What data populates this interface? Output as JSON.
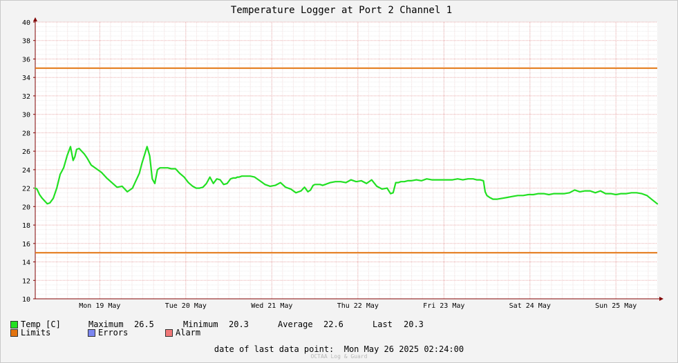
{
  "chart_data": {
    "type": "line",
    "title": "Temperature Logger at Port 2 Channel 1",
    "ylim": [
      10,
      40
    ],
    "y_ticks": [
      "10",
      "12",
      "14",
      "16",
      "18",
      "20",
      "22",
      "24",
      "26",
      "28",
      "30",
      "32",
      "34",
      "36",
      "38",
      "40"
    ],
    "x_range_days": [
      18.75,
      25.98
    ],
    "day_labels": [
      {
        "label": "Mon 19 May",
        "day": 19
      },
      {
        "label": "Tue 20 May",
        "day": 20
      },
      {
        "label": "Wed 21 May",
        "day": 21
      },
      {
        "label": "Thu 22 May",
        "day": 22
      },
      {
        "label": "Fri 23 May",
        "day": 23
      },
      {
        "label": "Sat 24 May",
        "day": 24
      },
      {
        "label": "Sun 25 May",
        "day": 25
      }
    ],
    "grid": true,
    "colors": {
      "temp": "#22e022",
      "limits": "#e2730f",
      "errors": "#7b86f0",
      "alarm": "#f07878",
      "grid": "#e8a9a9",
      "axis": "#800000"
    },
    "limits": [
      35,
      15
    ],
    "series": [
      {
        "name": "Temp [C]",
        "x": [
          18.75,
          18.77,
          18.8,
          18.83,
          18.86,
          18.89,
          18.92,
          18.96,
          19.0,
          19.04,
          19.08,
          19.12,
          19.16,
          19.19,
          19.21,
          19.23,
          19.26,
          19.29,
          19.32,
          19.35,
          19.4,
          19.46,
          19.52,
          19.58,
          19.64,
          19.7,
          19.76,
          19.82,
          19.88,
          19.92,
          19.96,
          19.99,
          20.02,
          20.05,
          20.08,
          20.11,
          20.14,
          20.17,
          20.2,
          20.22,
          20.23,
          20.24,
          20.26,
          20.29,
          20.33,
          20.38,
          20.43,
          20.48,
          20.53,
          20.58,
          20.62,
          20.66,
          20.7,
          20.74,
          20.78,
          20.82,
          20.86,
          20.9,
          20.94,
          20.98,
          21.02,
          21.05,
          21.08,
          21.1,
          21.12,
          21.15,
          21.18,
          21.22,
          21.25,
          21.3,
          21.36,
          21.42,
          21.48,
          21.54,
          21.6,
          21.66,
          21.72,
          21.78,
          21.84,
          21.88,
          21.92,
          21.95,
          21.98,
          22.0,
          22.03,
          22.06,
          22.09,
          22.12,
          22.15,
          22.18,
          22.24,
          22.3,
          22.36,
          22.42,
          22.48,
          22.54,
          22.6,
          22.66,
          22.72,
          22.78,
          22.84,
          22.88,
          22.91,
          22.94,
          22.97,
          23.0,
          23.04,
          23.08,
          23.12,
          23.18,
          23.24,
          23.3,
          23.36,
          23.42,
          23.48,
          23.54,
          23.6,
          23.66,
          23.72,
          23.78,
          23.84,
          23.88,
          23.92,
          23.96,
          23.98,
          24.0,
          24.03,
          24.07,
          24.12,
          24.18,
          24.24,
          24.3,
          24.36,
          24.42,
          24.48,
          24.54,
          24.6,
          24.66,
          24.72,
          24.78,
          24.84,
          24.9,
          24.96,
          25.02,
          25.08,
          25.14,
          25.2,
          25.26,
          25.32,
          25.38,
          25.44,
          25.5,
          25.56,
          25.62,
          25.68,
          25.74,
          25.8,
          25.86,
          25.9,
          25.94,
          25.98
        ],
        "y": [
          22.0,
          21.9,
          21.3,
          20.9,
          20.6,
          20.3,
          20.4,
          20.9,
          22.0,
          23.5,
          24.2,
          25.5,
          26.5,
          25.0,
          25.4,
          26.2,
          26.3,
          26.0,
          25.7,
          25.3,
          24.5,
          24.1,
          23.7,
          23.1,
          22.6,
          22.1,
          22.2,
          21.6,
          22.0,
          22.8,
          23.6,
          24.7,
          25.6,
          26.5,
          25.5,
          23.0,
          22.5,
          24.0,
          24.2,
          24.2,
          24.2,
          24.2,
          24.2,
          24.2,
          24.1,
          24.1,
          23.6,
          23.2,
          22.6,
          22.2,
          22.0,
          22.0,
          22.1,
          22.5,
          23.2,
          22.5,
          23.0,
          22.9,
          22.4,
          22.5,
          23.0,
          23.1,
          23.1,
          23.2,
          23.2,
          23.3,
          23.3,
          23.3,
          23.3,
          23.2,
          22.8,
          22.4,
          22.2,
          22.3,
          22.6,
          22.1,
          21.9,
          21.5,
          21.7,
          22.1,
          21.6,
          21.8,
          22.3,
          22.4,
          22.4,
          22.4,
          22.3,
          22.4,
          22.5,
          22.6,
          22.7,
          22.7,
          22.6,
          22.9,
          22.7,
          22.8,
          22.5,
          22.9,
          22.2,
          21.9,
          22.0,
          21.4,
          21.5,
          22.6,
          22.6,
          22.7,
          22.7,
          22.8,
          22.8,
          22.9,
          22.8,
          23.0,
          22.9,
          22.9,
          22.9,
          22.9,
          22.9,
          23.0,
          22.9,
          23.0,
          23.0,
          22.9,
          22.9,
          22.8,
          21.6,
          21.2,
          21.0,
          20.8,
          20.8,
          20.9,
          21.0,
          21.1,
          21.2,
          21.2,
          21.3,
          21.3,
          21.4,
          21.4,
          21.3,
          21.4,
          21.4,
          21.4,
          21.5,
          21.8,
          21.6,
          21.7,
          21.7,
          21.5,
          21.7,
          21.4,
          21.4,
          21.3,
          21.4,
          21.4,
          21.5,
          21.5,
          21.4,
          21.2,
          20.9,
          20.6,
          20.3
        ]
      },
      {
        "name": "Limits",
        "values": [
          35,
          15
        ]
      }
    ]
  },
  "legend": {
    "temp_label": "Temp [C]",
    "limits_label": "Limits",
    "errors_label": "Errors",
    "alarm_label": "Alarm"
  },
  "stats": {
    "max_label": "Maximum",
    "max_value": "26.5",
    "min_label": "Minimum",
    "min_value": "20.3",
    "avg_label": "Average",
    "avg_value": "22.6",
    "last_label": "Last",
    "last_value": "20.3"
  },
  "footer": {
    "last_point_label": "date of last data point:",
    "last_point_value": "Mon May 26 2025 02:24:00",
    "brand": "OCTAA Log & Guard"
  }
}
